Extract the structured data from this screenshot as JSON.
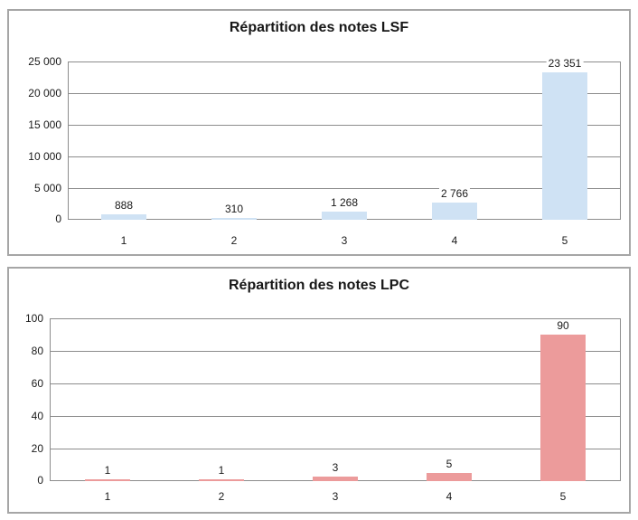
{
  "page": {
    "background_color": "#ffffff",
    "grid_color": "#8c8c8c",
    "panel_border_color": "#a6a6a6",
    "text_color": "#1a1a1a"
  },
  "chart_data": [
    {
      "type": "bar",
      "title": "Répartition des notes LSF",
      "categories": [
        "1",
        "2",
        "3",
        "4",
        "5"
      ],
      "values": [
        888,
        310,
        1268,
        2766,
        23351
      ],
      "value_labels": [
        "888",
        "310",
        "1 268",
        "2 766",
        "23 351"
      ],
      "y_ticks": [
        "0",
        "5 000",
        "10 000",
        "15 000",
        "20 000",
        "25 000"
      ],
      "ylim": [
        0,
        25000
      ],
      "xlabel": "",
      "ylabel": "",
      "grid": true,
      "legend": "none",
      "bar_color": "#cfe2f4"
    },
    {
      "type": "bar",
      "title": "Répartition des notes LPC",
      "categories": [
        "1",
        "2",
        "3",
        "4",
        "5"
      ],
      "values": [
        1,
        1,
        3,
        5,
        90
      ],
      "value_labels": [
        "1",
        "1",
        "3",
        "5",
        "90"
      ],
      "y_ticks": [
        "0",
        "20",
        "40",
        "60",
        "80",
        "100"
      ],
      "ylim": [
        0,
        100
      ],
      "xlabel": "",
      "ylabel": "",
      "grid": true,
      "legend": "none",
      "bar_color": "#ec9b9b"
    }
  ]
}
